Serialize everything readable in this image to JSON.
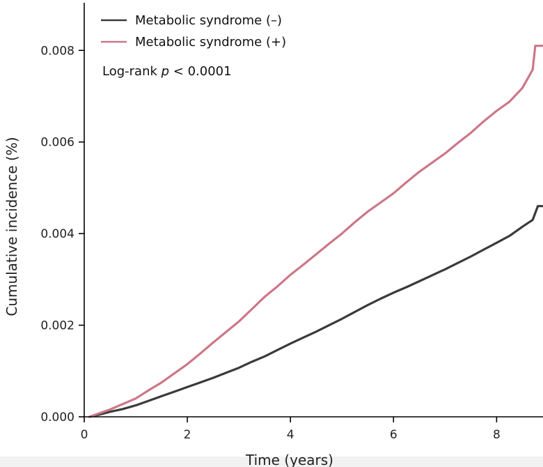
{
  "chart_data": {
    "type": "line",
    "xlabel": "Time (years)",
    "ylabel": "Cumulative incidence (%)",
    "xlim": [
      0,
      8.9
    ],
    "ylim": [
      0,
      0.0091
    ],
    "xticks": [
      0,
      2,
      4,
      6,
      8
    ],
    "yticks": [
      0.0,
      0.002,
      0.004,
      0.006,
      0.008
    ],
    "xtick_labels": [
      "0",
      "2",
      "4",
      "6",
      "8"
    ],
    "ytick_labels": [
      "0.000",
      "0.002",
      "0.004",
      "0.006",
      "0.008"
    ],
    "grid": false,
    "legend_position": "top-left",
    "annotation_prefix": "Log-rank ",
    "annotation_italic": "p",
    "annotation_suffix": " < 0.0001",
    "series": [
      {
        "name": "Metabolic syndrome (–)",
        "color": "#3a3a3a",
        "x": [
          0.1,
          0.3,
          0.5,
          0.75,
          1.0,
          1.25,
          1.5,
          1.75,
          2.0,
          2.25,
          2.5,
          2.75,
          3.0,
          3.25,
          3.5,
          3.75,
          4.0,
          4.25,
          4.5,
          4.75,
          5.0,
          5.25,
          5.5,
          5.75,
          6.0,
          6.25,
          6.5,
          6.75,
          7.0,
          7.25,
          7.5,
          7.75,
          8.0,
          8.25,
          8.5,
          8.7,
          8.8,
          8.9
        ],
        "y": [
          0.0,
          5e-05,
          0.00011,
          0.00017,
          0.00025,
          0.00035,
          0.00045,
          0.00055,
          0.00065,
          0.00075,
          0.00085,
          0.00096,
          0.00107,
          0.0012,
          0.00132,
          0.00146,
          0.0016,
          0.00173,
          0.00186,
          0.002,
          0.00214,
          0.00229,
          0.00244,
          0.00258,
          0.00271,
          0.00283,
          0.00296,
          0.00309,
          0.00322,
          0.00336,
          0.0035,
          0.00365,
          0.0038,
          0.00395,
          0.00415,
          0.0043,
          0.0046,
          0.0046
        ]
      },
      {
        "name": "Metabolic syndrome (+)",
        "color": "#cc7788",
        "x": [
          0.1,
          0.3,
          0.5,
          0.75,
          1.0,
          1.25,
          1.5,
          1.75,
          2.0,
          2.25,
          2.5,
          2.75,
          3.0,
          3.25,
          3.5,
          3.75,
          4.0,
          4.25,
          4.5,
          4.75,
          5.0,
          5.25,
          5.5,
          5.75,
          6.0,
          6.25,
          6.5,
          6.75,
          7.0,
          7.25,
          7.5,
          7.75,
          8.0,
          8.25,
          8.5,
          8.7,
          8.75,
          8.9
        ],
        "y": [
          0.0,
          8e-05,
          0.00016,
          0.00028,
          0.0004,
          0.00058,
          0.00075,
          0.00095,
          0.00115,
          0.00138,
          0.00162,
          0.00185,
          0.00208,
          0.00235,
          0.00262,
          0.00285,
          0.0031,
          0.00332,
          0.00355,
          0.00378,
          0.004,
          0.00425,
          0.00448,
          0.00468,
          0.00488,
          0.00512,
          0.00535,
          0.00555,
          0.00575,
          0.00598,
          0.0062,
          0.00645,
          0.00668,
          0.00688,
          0.00718,
          0.00758,
          0.0081,
          0.0081
        ]
      }
    ]
  }
}
